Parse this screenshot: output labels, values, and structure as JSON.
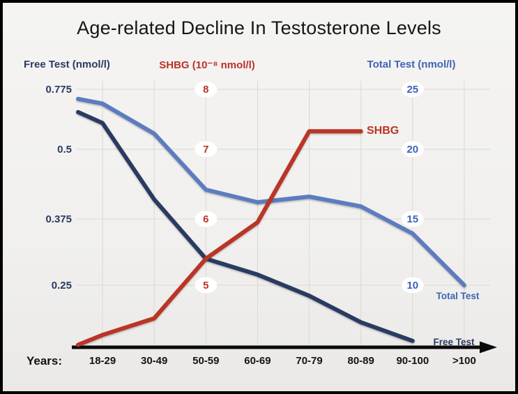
{
  "colors": {
    "grid": "#d9d8d4",
    "axis": "#0a0a0a",
    "chip": "#ffffff",
    "background": "#f1f0ee",
    "frame_border": "#000000",
    "category_text": "#141414",
    "title_text": "#161616"
  },
  "chart_data": {
    "type": "line",
    "title": "Age-related Decline In Testosterone Levels",
    "x_label": "Years:",
    "categories": [
      "18-29",
      "30-49",
      "50-59",
      "60-69",
      "70-79",
      "80-89",
      "90-100",
      ">100"
    ],
    "grid": true,
    "legend_position": "end-of-line labels",
    "axes": [
      {
        "id": "free_test",
        "title": "Free Test (nmol/l)",
        "position": "left",
        "color": "#2c3a62",
        "tick_labels": [
          "0.775",
          "0.5",
          "0.375",
          "0.25"
        ],
        "tick_values": [
          0.775,
          0.5,
          0.375,
          0.25
        ]
      },
      {
        "id": "shbg",
        "title": "SHBG (10⁻⁸ nmol/l)",
        "position": "middle",
        "color": "#b93425",
        "tick_labels": [
          "8",
          "7",
          "6",
          "5"
        ],
        "tick_values": [
          8,
          7,
          6,
          5
        ]
      },
      {
        "id": "total_test",
        "title": "Total Test (nmol/l)",
        "position": "right",
        "color": "#3f63b8",
        "tick_labels": [
          "25",
          "20",
          "15",
          "10"
        ],
        "tick_values": [
          25,
          20,
          15,
          10
        ]
      }
    ],
    "series": [
      {
        "name": "Total Test",
        "axis": "total_test",
        "color": "#5d7bc0",
        "end_label": "Total Test",
        "lead_value": 24.2,
        "values": [
          23.8,
          21.3,
          17.1,
          16.2,
          16.6,
          15.9,
          13.9,
          10
        ]
      },
      {
        "name": "Free Test",
        "axis": "free_test",
        "color": "#2c3a62",
        "end_label": "Free Test",
        "lead_value": 0.67,
        "values": [
          0.62,
          0.41,
          0.3,
          0.27,
          0.23,
          0.18,
          0.145,
          null
        ]
      },
      {
        "name": "SHBG",
        "axis": "shbg",
        "color": "#b93425",
        "end_label": "SHBG",
        "lead_value": 4.1,
        "values": [
          4.25,
          4.5,
          5.4,
          5.95,
          7.3,
          7.3,
          null,
          null
        ]
      }
    ]
  }
}
